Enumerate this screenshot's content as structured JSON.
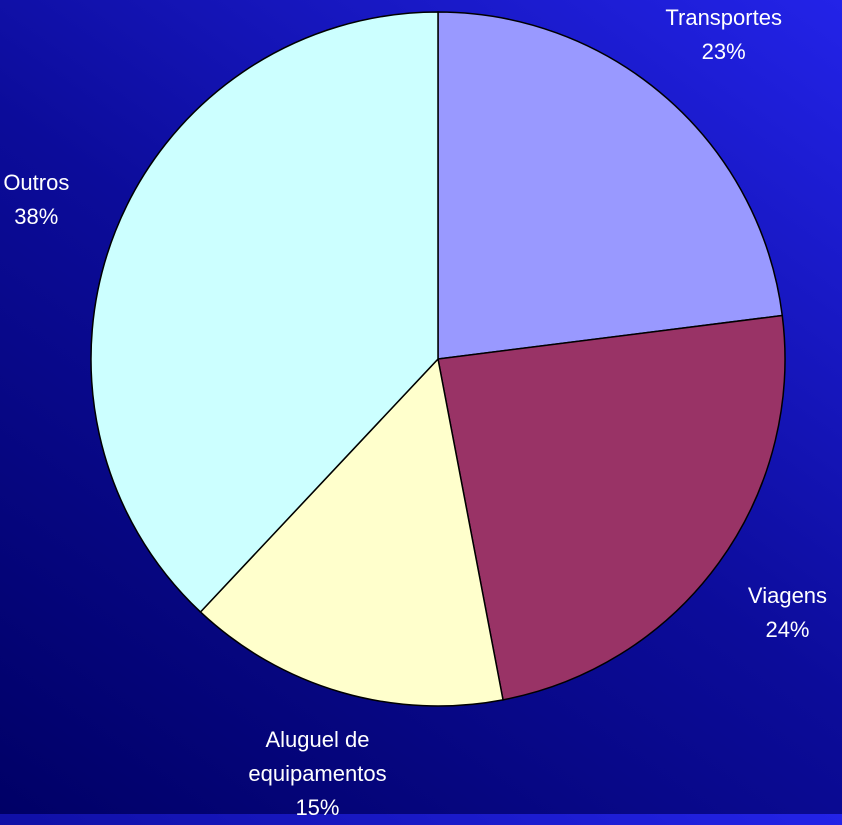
{
  "chart_data": {
    "type": "pie",
    "categories": [
      "Transportes",
      "Viagens",
      "Aluguel de\nequipamentos",
      "Outros"
    ],
    "values": [
      23,
      24,
      15,
      38
    ],
    "value_labels": [
      "23%",
      "24%",
      "15%",
      "38%"
    ],
    "colors": [
      "#9999ff",
      "#993366",
      "#ffffcc",
      "#ccffff"
    ]
  }
}
